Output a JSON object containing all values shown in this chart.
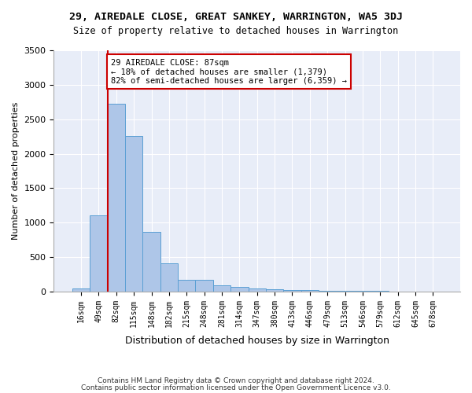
{
  "title": "29, AIREDALE CLOSE, GREAT SANKEY, WARRINGTON, WA5 3DJ",
  "subtitle": "Size of property relative to detached houses in Warrington",
  "xlabel": "Distribution of detached houses by size in Warrington",
  "ylabel": "Number of detached properties",
  "categories": [
    "16sqm",
    "49sqm",
    "82sqm",
    "115sqm",
    "148sqm",
    "182sqm",
    "215sqm",
    "248sqm",
    "281sqm",
    "314sqm",
    "347sqm",
    "380sqm",
    "413sqm",
    "446sqm",
    "479sqm",
    "513sqm",
    "546sqm",
    "579sqm",
    "612sqm",
    "645sqm",
    "678sqm"
  ],
  "values": [
    50,
    1100,
    2730,
    2260,
    870,
    415,
    175,
    165,
    90,
    65,
    45,
    30,
    25,
    20,
    10,
    5,
    5,
    5,
    3,
    2,
    2
  ],
  "bar_color": "#aec6e8",
  "bar_edge_color": "#5a9fd4",
  "vline_x_index": 2,
  "vline_color": "#cc0000",
  "annotation_text": "29 AIREDALE CLOSE: 87sqm\n← 18% of detached houses are smaller (1,379)\n82% of semi-detached houses are larger (6,359) →",
  "annotation_box_color": "#ffffff",
  "annotation_box_edge_color": "#cc0000",
  "background_color": "#e8edf8",
  "ylim": [
    0,
    3500
  ],
  "footer1": "Contains HM Land Registry data © Crown copyright and database right 2024.",
  "footer2": "Contains public sector information licensed under the Open Government Licence v3.0."
}
